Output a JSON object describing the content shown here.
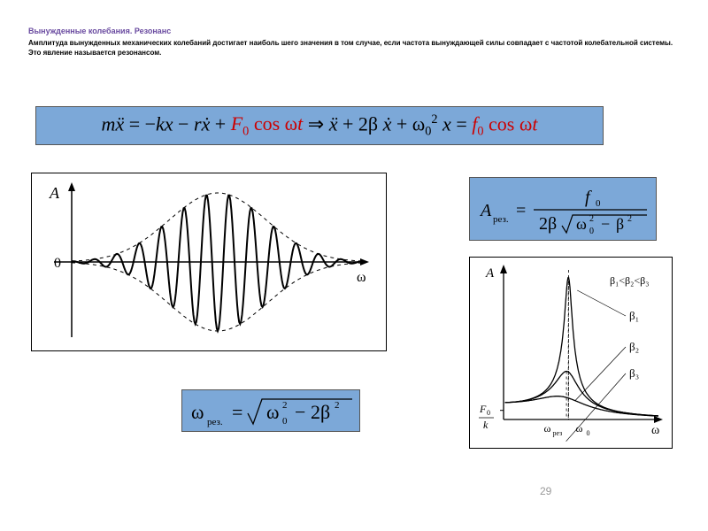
{
  "header": {
    "title": "Вынужденные колебания. Резонанс",
    "title_color": "#6a4ba0",
    "subtitle_line1": "Амплитуда вынужденных механических колебаний достигает наиболь шего значения в том случае, если частота вынуждающей силы совпадает с частотой колебательной системы.",
    "subtitle_line2": "Это явление называется резонансом."
  },
  "eq_main": {
    "bg": "#7ca8d8",
    "text_html": "<span class='italic'>m</span><span class='italic'>ẍ</span> = −<span class='italic'>kx</span> − <span class='italic'>rẋ</span> + <span class='red'><span class='italic'>F</span><span class='sub'>0</span> cos ω<span class='italic'>t</span></span> ⇒ <span class='italic'>ẍ</span> + 2β <span class='italic'>ẋ</span> + ω<span class='sub'>0</span><span class='sup'>2</span> <span class='italic'>x</span> = <span class='red italic'>f</span><span class='red sub'>0</span> <span class='red'>cos ω<span class='italic'>t</span></span>",
    "fontsize": 22
  },
  "eq_amp": {
    "bg": "#7ca8d8",
    "label_A": "A",
    "label_sub": "рез.",
    "f0": "f",
    "f0_sub": "0",
    "two_beta": "2β",
    "omega0": "ω",
    "omega0_sub": "0",
    "minus": "−",
    "beta": "β",
    "fontsize": 20
  },
  "eq_omega": {
    "bg": "#7ca8d8",
    "omega": "ω",
    "sub_rez": "рез.",
    "equals": "=",
    "omega0": "ω",
    "omega0_sub": "0",
    "two": "2",
    "minus": "−",
    "beta": "2β",
    "fontsize": 22
  },
  "chart_envelope": {
    "border_color": "#000000",
    "bg": "#ffffff",
    "axis_color": "#000000",
    "curve_color": "#000000",
    "envelope_dash": "4,4",
    "label_A": "A",
    "label_0": "0",
    "label_omega": "ω",
    "envelope_sigma": 55,
    "envelope_peak": 78,
    "cycles": 13
  },
  "chart_resonance": {
    "border_color": "#000000",
    "bg": "#ffffff",
    "axis_color": "#000000",
    "label_A": "A",
    "label_omega": "ω",
    "label_F0k_top": "F",
    "label_F0k_sub": "0",
    "label_F0k_bot": "k",
    "label_wrez": "ω",
    "label_wrez_sub": "рез",
    "label_w0": "ω",
    "label_w0_sub": "0",
    "legend": "β₁<β₂<β₃",
    "curve_labels": [
      "β₁",
      "β₂",
      "β₃"
    ],
    "curves": [
      {
        "beta_rel": 0.06,
        "peak_x": 0.97
      },
      {
        "beta_rel": 0.18,
        "peak_x": 0.93
      },
      {
        "beta_rel": 0.4,
        "peak_x": 0.83
      }
    ],
    "base_level": 0.16
  },
  "page_number": "29"
}
